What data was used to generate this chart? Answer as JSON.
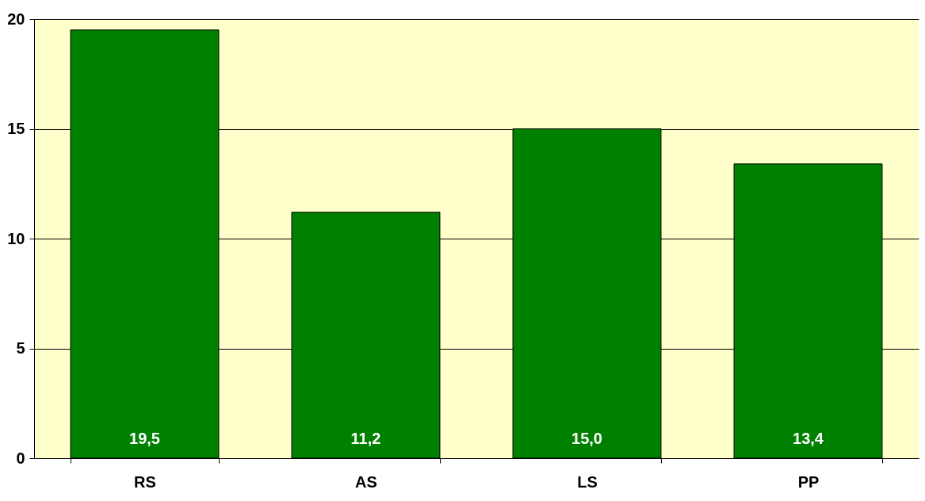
{
  "chart_data": {
    "type": "bar",
    "categories": [
      "RS",
      "AS",
      "LS",
      "PP"
    ],
    "values": [
      19.5,
      11.2,
      15.0,
      13.4
    ],
    "value_labels": [
      "19,5",
      "11,2",
      "15,0",
      "13,4"
    ],
    "color": "#008000",
    "ylim": [
      0,
      20
    ],
    "yticks": [
      0,
      5,
      10,
      15,
      20
    ],
    "grid": "y"
  }
}
